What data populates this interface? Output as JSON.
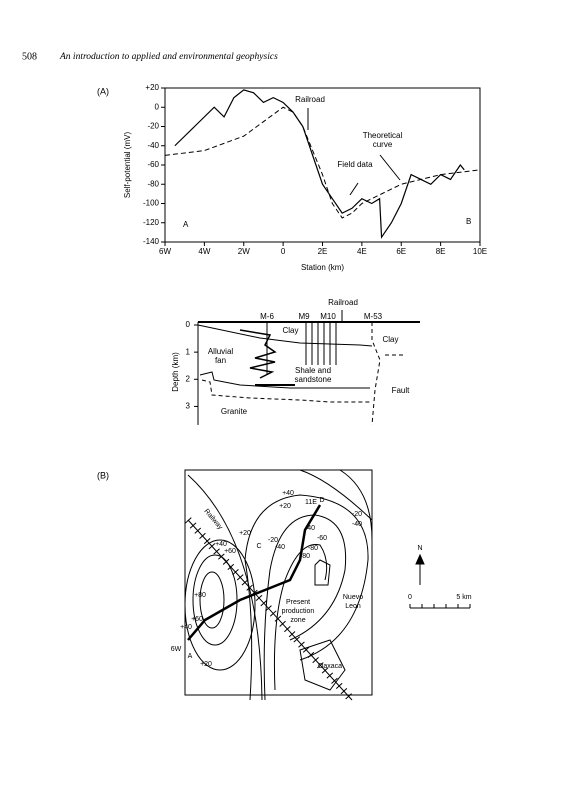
{
  "header": {
    "page": "508",
    "title": "An introduction to applied and environmental geophysics"
  },
  "chart_data": {
    "type": "line",
    "panel_label": "(A)",
    "x_label": "Station (km)",
    "y_label": "Self-potential (mV)",
    "xlim": [
      -6,
      10
    ],
    "xticks": [
      {
        "value": -6,
        "label": "6W"
      },
      {
        "value": -4,
        "label": "4W"
      },
      {
        "value": -2,
        "label": "2W"
      },
      0,
      {
        "value": 2,
        "label": "2E"
      },
      {
        "value": 4,
        "label": "4E"
      },
      {
        "value": 6,
        "label": "6E"
      },
      {
        "value": 8,
        "label": "8E"
      },
      {
        "value": 10,
        "label": "10E"
      }
    ],
    "ylim": [
      -140,
      20
    ],
    "yticks": [
      {
        "value": 20,
        "label": "+20"
      },
      0,
      -20,
      -40,
      -60,
      -80,
      -100,
      -120,
      -140
    ],
    "series": [
      {
        "name": "Field data",
        "color": "#000000",
        "line_style": "solid",
        "x": [
          -5.5,
          -5,
          -4.5,
          -4,
          -3.5,
          -3,
          -2.5,
          -2,
          -1.5,
          -1,
          -0.5,
          0,
          0.5,
          1,
          1.5,
          2,
          2.5,
          3,
          3.5,
          4,
          4.5,
          4.9,
          5,
          5.5,
          6,
          6.5,
          7,
          7.5,
          8,
          8.5,
          9,
          9.2
        ],
        "values": [
          -40,
          -30,
          -20,
          -10,
          0,
          -10,
          10,
          18,
          15,
          5,
          10,
          5,
          -5,
          -20,
          -50,
          -80,
          -95,
          -110,
          -105,
          -95,
          -100,
          -95,
          -135,
          -120,
          -100,
          -70,
          -75,
          -80,
          -70,
          -75,
          -60,
          -65
        ]
      },
      {
        "name": "Theoretical curve",
        "color": "#000000",
        "line_style": "dashed",
        "x": [
          -6,
          -4,
          -2,
          -1,
          0,
          0.5,
          1,
          2,
          2.5,
          3,
          3.5,
          4,
          5,
          6,
          8,
          10
        ],
        "values": [
          -50,
          -45,
          -30,
          -15,
          0,
          -5,
          -20,
          -70,
          -100,
          -115,
          -110,
          -100,
          -90,
          -80,
          -70,
          -65
        ]
      }
    ],
    "annotations": [
      "Railroad",
      "A",
      "B"
    ]
  },
  "cross_section": {
    "y_label": "Depth (km)",
    "ylim": [
      0,
      3.5
    ],
    "yticks": [
      0,
      1,
      2,
      3
    ],
    "labels": [
      "M-6",
      "M9",
      "M10",
      "Railroad",
      "M-53",
      "Clay",
      "Clay",
      "Alluvial fan",
      "Shale and sandstone",
      "Fault",
      "Granite"
    ]
  },
  "map": {
    "panel_label": "(B)",
    "labels": [
      "Railway",
      "+40",
      "+20",
      "11E",
      "D",
      "-20",
      "-40",
      "-40",
      "-60",
      "-80",
      "-80",
      "+20",
      "C",
      "-20",
      "-40",
      "+60",
      "+40",
      "+80",
      "+60",
      "+40",
      "6W",
      "A",
      "+20",
      "Present production zone",
      "Nuevo Leon",
      "Oaxaca",
      "N",
      "0",
      "5 km"
    ]
  }
}
